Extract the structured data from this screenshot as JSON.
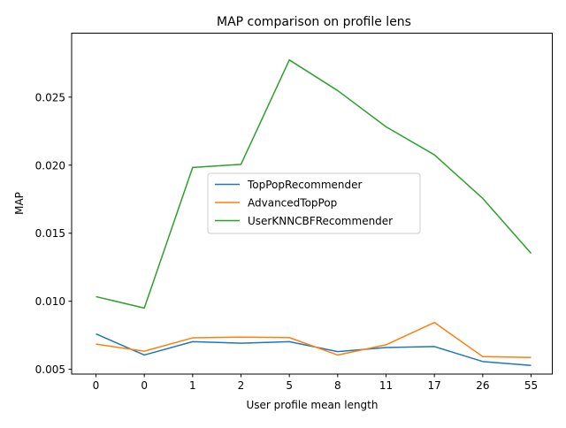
{
  "chart_data": {
    "type": "line",
    "title": "MAP comparison on profile lens",
    "xlabel": "User profile mean length",
    "ylabel": "MAP",
    "categories": [
      "0",
      "0",
      "1",
      "2",
      "5",
      "8",
      "11",
      "17",
      "26",
      "55"
    ],
    "ylim": [
      0.00465,
      0.0297
    ],
    "yticks": [
      0.005,
      0.01,
      0.015,
      0.02,
      0.025
    ],
    "ytick_labels": [
      "0.005",
      "0.010",
      "0.015",
      "0.020",
      "0.025"
    ],
    "grid": false,
    "legend_position": "center",
    "series": [
      {
        "name": "TopPopRecommender",
        "color": "#1f77b4",
        "values": [
          0.0076,
          0.00605,
          0.00703,
          0.00692,
          0.00703,
          0.0063,
          0.0066,
          0.00667,
          0.00557,
          0.00528
        ]
      },
      {
        "name": "AdvancedTopPop",
        "color": "#ff7f0e",
        "values": [
          0.00685,
          0.00633,
          0.00731,
          0.00736,
          0.00733,
          0.00605,
          0.0068,
          0.00844,
          0.00593,
          0.00587
        ]
      },
      {
        "name": "UserKNNCBFRecommender",
        "color": "#2ca02c",
        "values": [
          0.01034,
          0.0095,
          0.01983,
          0.02006,
          0.02773,
          0.02548,
          0.02282,
          0.02076,
          0.01756,
          0.01352
        ]
      }
    ]
  }
}
